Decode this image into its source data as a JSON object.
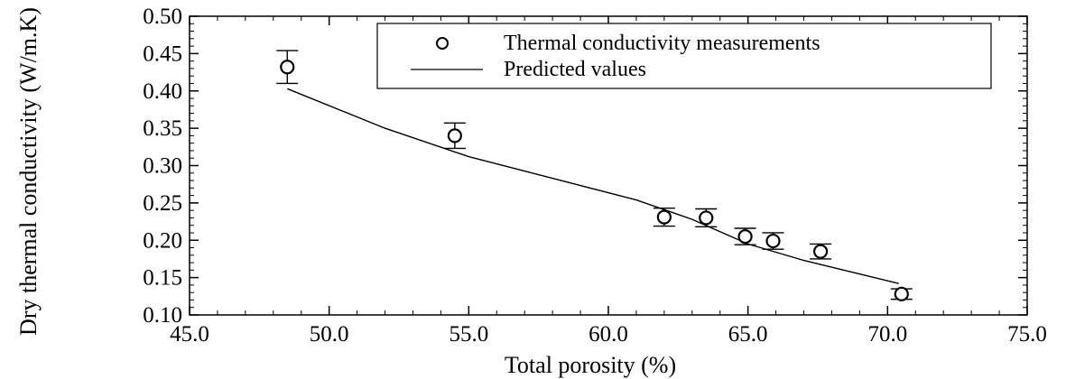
{
  "chart_data": {
    "type": "scatter",
    "xlabel": "Total porosity (%)",
    "ylabel": "Dry thermal conductivity (W/m.K)",
    "xlim": [
      45.0,
      75.0
    ],
    "ylim": [
      0.1,
      0.5
    ],
    "x_ticks": [
      "45.0",
      "50.0",
      "55.0",
      "60.0",
      "65.0",
      "70.0",
      "75.0"
    ],
    "y_ticks": [
      "0.10",
      "0.15",
      "0.20",
      "0.25",
      "0.30",
      "0.35",
      "0.40",
      "0.45",
      "0.50"
    ],
    "legend_position": "top-right",
    "grid": false,
    "series": [
      {
        "name": "Thermal conductivity measurements",
        "kind": "scatter",
        "marker": "open-circle",
        "points": [
          {
            "x": 48.5,
            "y": 0.432,
            "err": 0.022
          },
          {
            "x": 54.5,
            "y": 0.34,
            "err": 0.017
          },
          {
            "x": 62.0,
            "y": 0.231,
            "err": 0.012
          },
          {
            "x": 63.5,
            "y": 0.23,
            "err": 0.012
          },
          {
            "x": 64.9,
            "y": 0.205,
            "err": 0.011
          },
          {
            "x": 65.9,
            "y": 0.199,
            "err": 0.011
          },
          {
            "x": 67.6,
            "y": 0.185,
            "err": 0.01
          },
          {
            "x": 70.5,
            "y": 0.128,
            "err": 0.007
          }
        ]
      },
      {
        "name": "Predicted values",
        "kind": "line",
        "points": [
          {
            "x": 48.5,
            "y": 0.403
          },
          {
            "x": 52.0,
            "y": 0.35
          },
          {
            "x": 55.0,
            "y": 0.312
          },
          {
            "x": 58.0,
            "y": 0.283
          },
          {
            "x": 61.0,
            "y": 0.254
          },
          {
            "x": 63.0,
            "y": 0.228
          },
          {
            "x": 65.0,
            "y": 0.195
          },
          {
            "x": 67.0,
            "y": 0.173
          },
          {
            "x": 70.4,
            "y": 0.142
          }
        ]
      }
    ]
  }
}
